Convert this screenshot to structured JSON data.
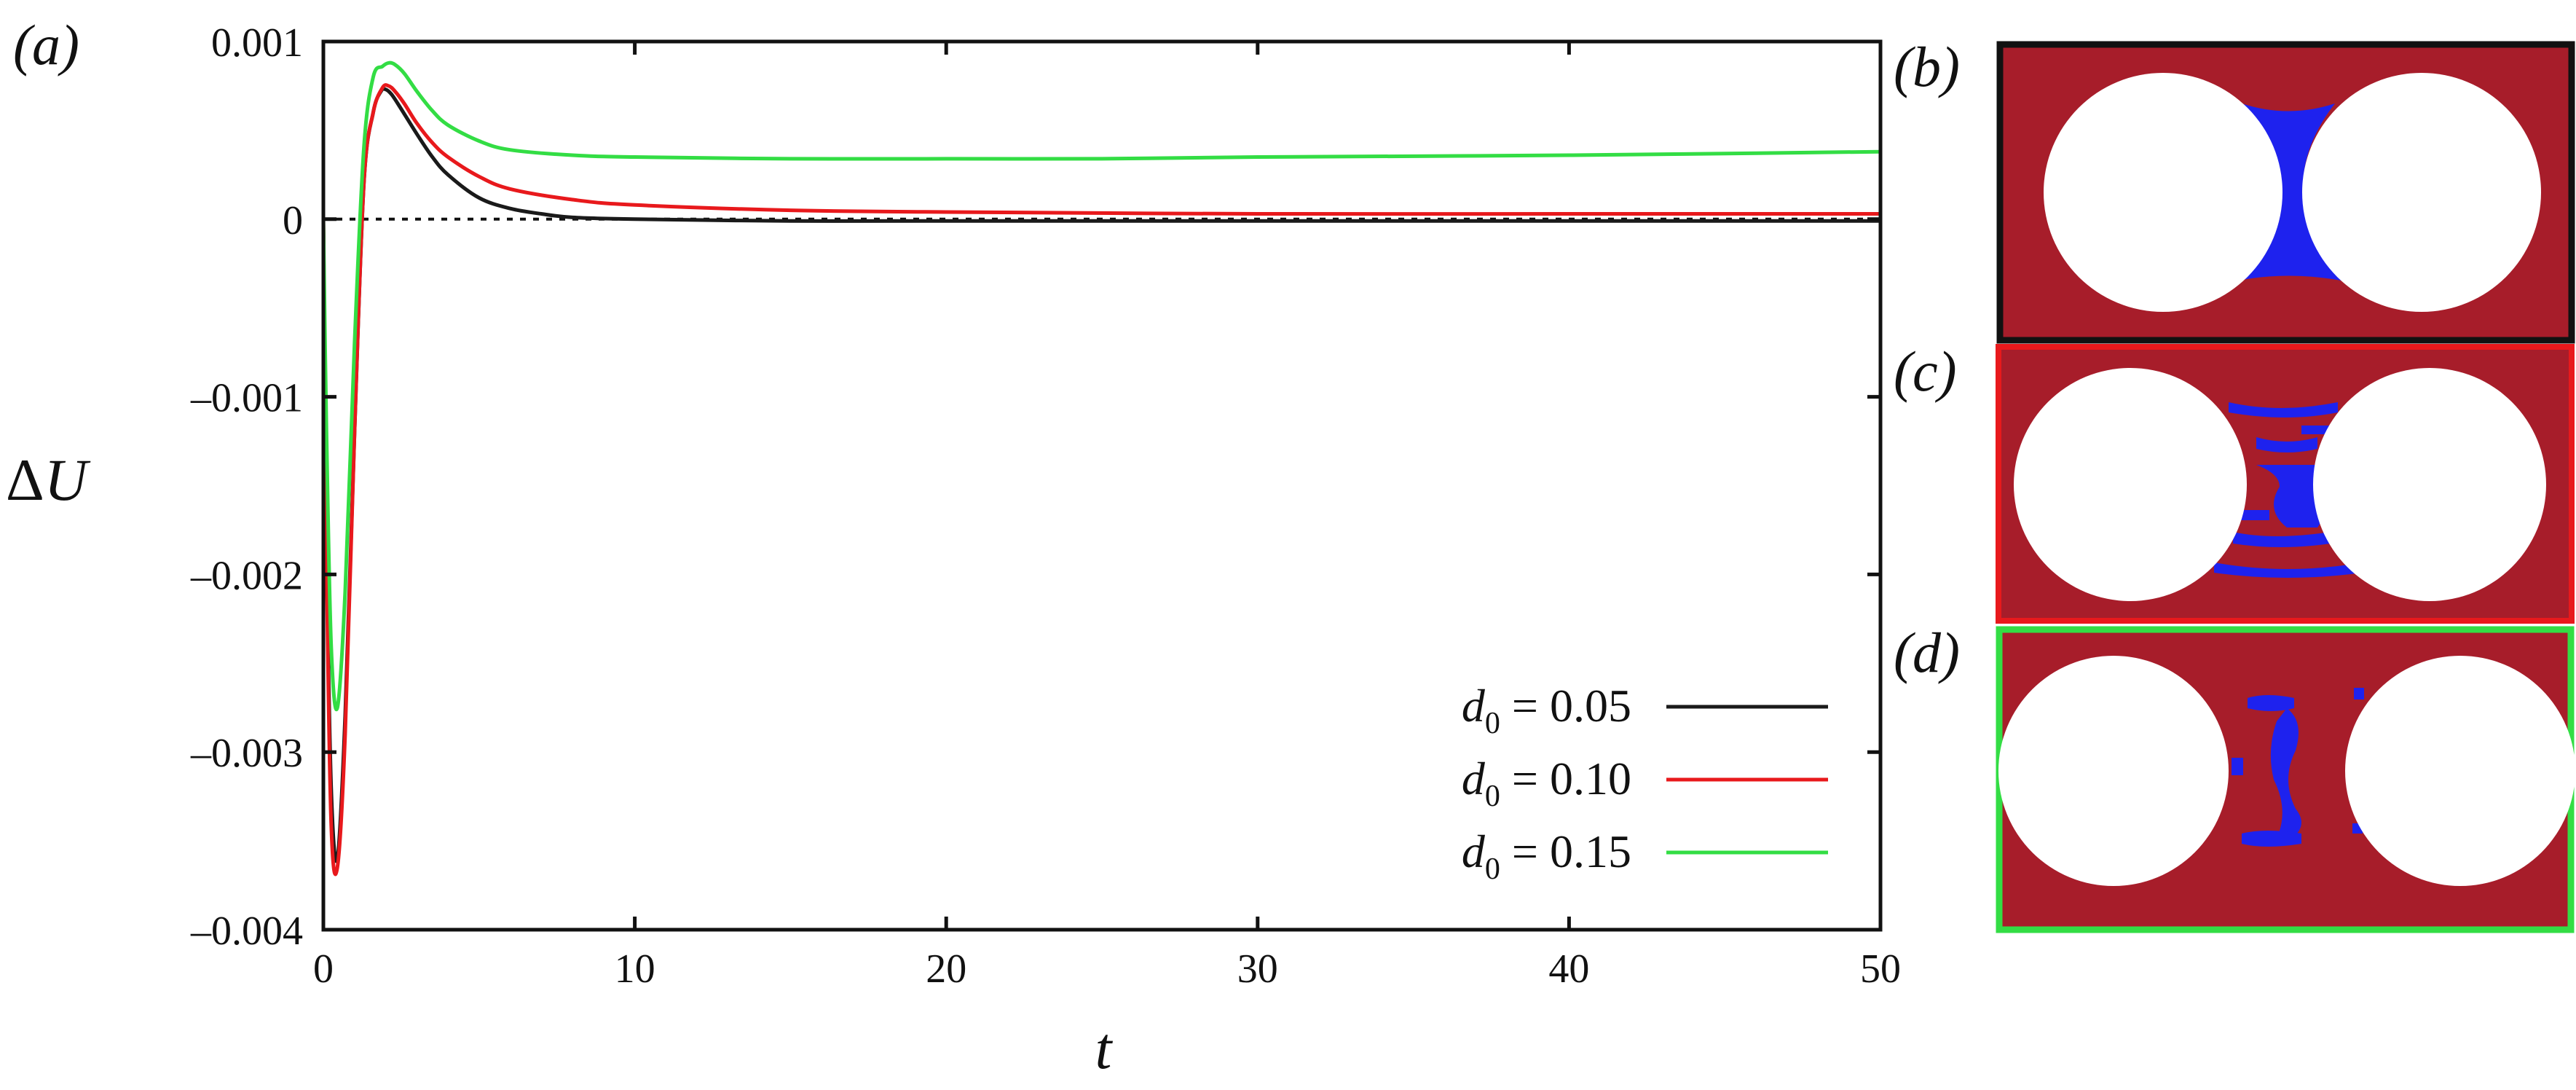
{
  "chart_data": {
    "type": "line",
    "panel_label": "(a)",
    "xlabel": "t",
    "ylabel_prefix": "Δ",
    "ylabel_var": "U",
    "xlim": [
      0,
      50
    ],
    "ylim": [
      -0.004,
      0.001
    ],
    "xticks": [
      0,
      10,
      20,
      30,
      40,
      50
    ],
    "xtick_labels": [
      "0",
      "10",
      "20",
      "30",
      "40",
      "50"
    ],
    "yticks": [
      0.001,
      0,
      -0.001,
      -0.002,
      -0.003,
      -0.004
    ],
    "ytick_labels": [
      "0.001",
      "0",
      "–0.001",
      "–0.002",
      "–0.003",
      "–0.004"
    ],
    "reference_line": {
      "y": 0,
      "style": "dotted"
    },
    "legend_position": "lower-right",
    "series": [
      {
        "label_var": "d",
        "label_sub": "0",
        "label_rest": " = 0.05",
        "color": "#1a1a1a",
        "x": [
          0,
          0.1,
          0.25,
          0.45,
          0.7,
          1.0,
          1.3,
          1.6,
          1.85,
          2.0,
          2.2,
          2.5,
          3.0,
          3.5,
          4.0,
          5.0,
          6.0,
          7.0,
          8.0,
          10.0,
          15.0,
          20.0,
          30.0,
          40.0,
          50.0
        ],
        "y": [
          0,
          -0.0018,
          -0.0032,
          -0.0036,
          -0.0028,
          -0.0012,
          0.0002,
          0.0006,
          0.00072,
          0.00073,
          0.0007,
          0.00062,
          0.00048,
          0.00035,
          0.00025,
          0.00012,
          6e-05,
          3e-05,
          1e-05,
          0.0,
          -1e-05,
          -1e-05,
          -1e-05,
          -1e-05,
          -1e-05
        ]
      },
      {
        "label_var": "d",
        "label_sub": "0",
        "label_rest": " = 0.10",
        "color": "#e8191c",
        "x": [
          0,
          0.1,
          0.25,
          0.45,
          0.7,
          1.0,
          1.3,
          1.6,
          1.9,
          2.1,
          2.3,
          2.6,
          3.0,
          3.5,
          4.0,
          5.0,
          6.0,
          8.0,
          10.0,
          15.0,
          20.0,
          30.0,
          40.0,
          50.0
        ],
        "y": [
          0,
          -0.0019,
          -0.0034,
          -0.00365,
          -0.0029,
          -0.0012,
          0.0002,
          0.0006,
          0.00074,
          0.00075,
          0.00072,
          0.00065,
          0.00054,
          0.00043,
          0.00035,
          0.00024,
          0.00017,
          0.00011,
          8e-05,
          5e-05,
          4e-05,
          3e-05,
          3e-05,
          3e-05
        ]
      },
      {
        "label_var": "d",
        "label_sub": "0",
        "label_rest": " = 0.15",
        "color": "#33dd44",
        "x": [
          0,
          0.1,
          0.25,
          0.45,
          0.7,
          1.0,
          1.3,
          1.6,
          1.9,
          2.1,
          2.3,
          2.6,
          3.0,
          3.5,
          4.0,
          5.0,
          6.0,
          8.0,
          10.0,
          15.0,
          20.0,
          25.0,
          30.0,
          40.0,
          50.0
        ],
        "y": [
          0,
          -0.0012,
          -0.0024,
          -0.00275,
          -0.0021,
          -0.0007,
          0.0004,
          0.0008,
          0.00086,
          0.00088,
          0.00087,
          0.00082,
          0.00072,
          0.00061,
          0.00053,
          0.00044,
          0.00039,
          0.00036,
          0.00035,
          0.00034,
          0.00034,
          0.00034,
          0.00035,
          0.00036,
          0.00038
        ]
      }
    ]
  },
  "insets": [
    {
      "label": "(b)",
      "border_color": "#111111",
      "background_color": "#a71d2a",
      "particle_color": "#ffffff",
      "phase_color": "#1e22ee"
    },
    {
      "label": "(c)",
      "border_color": "#e8191c",
      "background_color": "#a71d2a",
      "particle_color": "#ffffff",
      "phase_color": "#1e22ee"
    },
    {
      "label": "(d)",
      "border_color": "#33dd44",
      "background_color": "#a71d2a",
      "particle_color": "#ffffff",
      "phase_color": "#1e22ee"
    }
  ]
}
